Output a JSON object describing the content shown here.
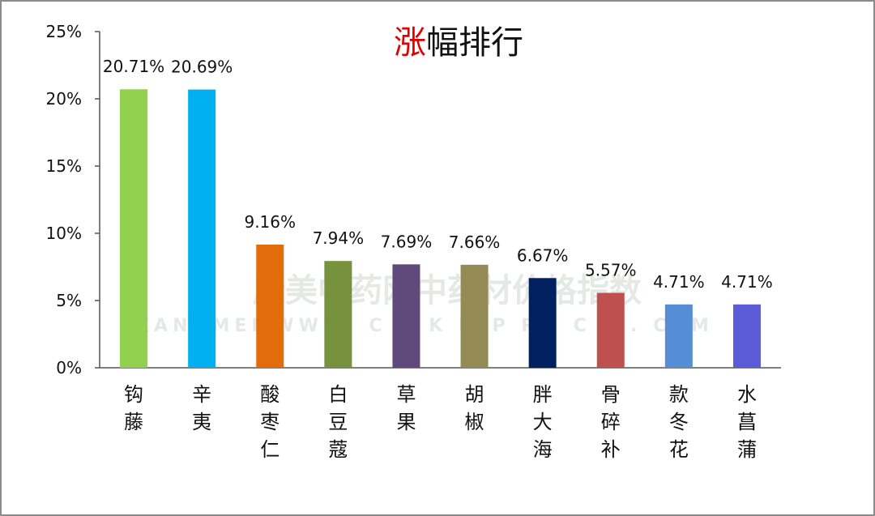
{
  "chart_data": {
    "type": "bar",
    "title_highlight": "涨",
    "title_rest": "幅排行",
    "categories": [
      "钩藤",
      "辛夷",
      "酸枣仁",
      "白豆蔻",
      "草果",
      "胡椒",
      "胖大海",
      "骨碎补",
      "款冬花",
      "水菖蒲"
    ],
    "values": [
      20.71,
      20.69,
      9.16,
      7.94,
      7.69,
      7.66,
      6.67,
      5.57,
      4.71,
      4.71
    ],
    "data_labels": [
      "20.71%",
      "20.69%",
      "9.16%",
      "7.94%",
      "7.69%",
      "7.66%",
      "6.67%",
      "5.57%",
      "4.71%",
      "4.71%"
    ],
    "bar_colors": [
      "#92d050",
      "#00b0f0",
      "#e36c0a",
      "#76923c",
      "#604a7b",
      "#948a54",
      "#002060",
      "#c0504d",
      "#558ed5",
      "#5b5bd6"
    ],
    "ylim": [
      0,
      25
    ],
    "yticks": [
      0,
      5,
      10,
      15,
      20,
      25
    ],
    "ytick_labels": [
      "0%",
      "5%",
      "10%",
      "15%",
      "20%",
      "25%"
    ],
    "title_color": "#e00000",
    "grid": false,
    "legend": "none"
  },
  "watermark": {
    "main": "康美中药网中药材价格指数",
    "sub": "KANGMEI WWW. C H K M P R I C E . COM"
  }
}
